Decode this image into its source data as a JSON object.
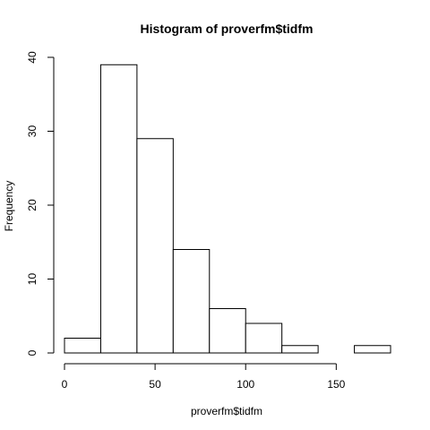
{
  "chart_data": {
    "type": "bar",
    "title": "Histogram of proverfm$tidfm",
    "xlabel": "proverfm$tidfm",
    "ylabel": "Frequency",
    "bins": [
      {
        "start": 0,
        "end": 20,
        "count": 2
      },
      {
        "start": 20,
        "end": 40,
        "count": 39
      },
      {
        "start": 40,
        "end": 60,
        "count": 29
      },
      {
        "start": 60,
        "end": 80,
        "count": 14
      },
      {
        "start": 80,
        "end": 100,
        "count": 6
      },
      {
        "start": 100,
        "end": 120,
        "count": 4
      },
      {
        "start": 120,
        "end": 140,
        "count": 1
      },
      {
        "start": 140,
        "end": 160,
        "count": 0
      },
      {
        "start": 160,
        "end": 180,
        "count": 1
      }
    ],
    "xlim": [
      0,
      180
    ],
    "ylim": [
      0,
      40
    ],
    "x_ticks": [
      0,
      50,
      100,
      150
    ],
    "y_ticks": [
      0,
      10,
      20,
      30,
      40
    ],
    "grid": false,
    "legend": "none"
  }
}
